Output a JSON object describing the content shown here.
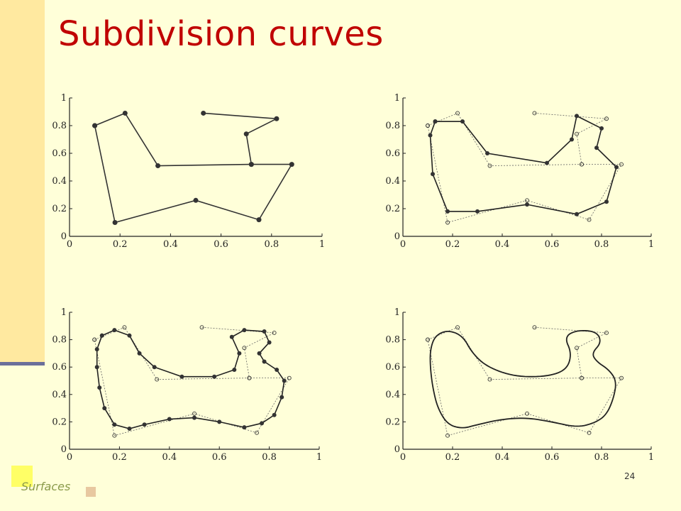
{
  "slide": {
    "title": "Subdivision curves",
    "footer": "Surfaces",
    "page_number": "24"
  },
  "colors": {
    "title": "#c00000",
    "background": "#ffffd9",
    "side_bar": "#ffe9a0",
    "side_rule": "#6b6f9a"
  },
  "axis": {
    "x_ticks": [
      "0",
      "0.2",
      "0.4",
      "0.6",
      "0.8",
      "1"
    ],
    "y_ticks": [
      "0",
      "0.2",
      "0.4",
      "0.6",
      "0.8",
      "1"
    ]
  },
  "control_polygon": [
    [
      0.1,
      0.8
    ],
    [
      0.22,
      0.89
    ],
    [
      0.35,
      0.51
    ],
    [
      0.72,
      0.52
    ],
    [
      0.88,
      0.52
    ],
    [
      0.75,
      0.12
    ],
    [
      0.5,
      0.26
    ],
    [
      0.18,
      0.1
    ],
    [
      0.1,
      0.8
    ]
  ],
  "control_polygon_top": [
    [
      0.53,
      0.89
    ],
    [
      0.82,
      0.85
    ],
    [
      0.7,
      0.74
    ],
    [
      0.72,
      0.52
    ]
  ],
  "smooth_curve": [
    [
      0.13,
      0.83
    ],
    [
      0.18,
      0.87
    ],
    [
      0.24,
      0.83
    ],
    [
      0.28,
      0.7
    ],
    [
      0.34,
      0.6
    ],
    [
      0.45,
      0.53
    ],
    [
      0.58,
      0.53
    ],
    [
      0.66,
      0.58
    ],
    [
      0.68,
      0.7
    ],
    [
      0.65,
      0.82
    ],
    [
      0.7,
      0.87
    ],
    [
      0.78,
      0.86
    ],
    [
      0.8,
      0.78
    ],
    [
      0.76,
      0.7
    ],
    [
      0.78,
      0.64
    ],
    [
      0.83,
      0.58
    ],
    [
      0.86,
      0.5
    ],
    [
      0.85,
      0.38
    ],
    [
      0.82,
      0.25
    ],
    [
      0.77,
      0.19
    ],
    [
      0.7,
      0.16
    ],
    [
      0.6,
      0.2
    ],
    [
      0.5,
      0.23
    ],
    [
      0.4,
      0.22
    ],
    [
      0.3,
      0.18
    ],
    [
      0.24,
      0.15
    ],
    [
      0.18,
      0.18
    ],
    [
      0.14,
      0.3
    ],
    [
      0.12,
      0.45
    ],
    [
      0.11,
      0.6
    ],
    [
      0.11,
      0.73
    ],
    [
      0.13,
      0.83
    ]
  ]
}
